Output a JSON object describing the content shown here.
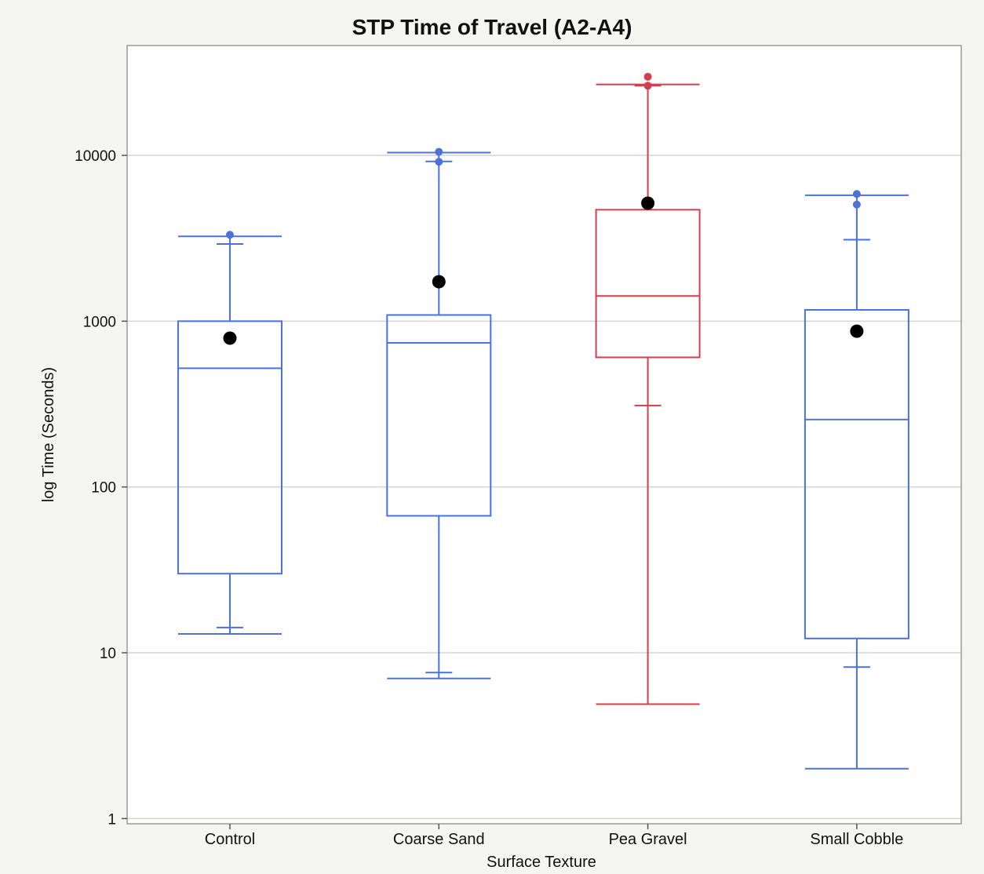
{
  "chart_data": {
    "type": "boxplot",
    "title": "STP Time of Travel (A2-A4)",
    "xlabel": "Surface Texture",
    "ylabel": "log Time (Seconds)",
    "yscale": "log",
    "ylim": [
      0.93,
      46000
    ],
    "yticks": [
      1,
      10,
      100,
      1000,
      10000
    ],
    "ytick_labels": [
      "1",
      "10",
      "100",
      "1000",
      "10000"
    ],
    "grid": "horizontal",
    "legend": "none",
    "colors": {
      "default": "#4a72d9",
      "highlight": "#d1404f",
      "mean_marker": "#000000",
      "gridline": "#d4d4d4",
      "frame": "#9a9a9a",
      "plot_background": "#ffffff",
      "page_background": "#f5f5f2"
    },
    "categories": [
      "Control",
      "Coarse Sand",
      "Pea Gravel",
      "Small Cobble"
    ],
    "boxes": [
      {
        "category": "Control",
        "color": "#4a72d9",
        "whisker_low": 13,
        "q1": 30,
        "median": 520,
        "q3": 1000,
        "whisker_high": 3250,
        "cap_low": 13,
        "cap_high": 3250,
        "ticks": [
          14.2,
          2920
        ],
        "mean": 790,
        "outliers": [
          3320
        ]
      },
      {
        "category": "Coarse Sand",
        "color": "#4a72d9",
        "whisker_low": 7,
        "q1": 67,
        "median": 740,
        "q3": 1090,
        "whisker_high": 10400,
        "cap_low": 7,
        "cap_high": 10400,
        "ticks": [
          7.6,
          9200
        ],
        "mean": 1730,
        "outliers": [
          9150,
          10500
        ]
      },
      {
        "category": "Pea Gravel",
        "color": "#d1404f",
        "whisker_low": 4.9,
        "q1": 605,
        "median": 1420,
        "q3": 4700,
        "whisker_high": 26800,
        "cap_low": 4.9,
        "cap_high": 26800,
        "ticks": [
          310,
          26300
        ],
        "mean": 5150,
        "outliers": [
          26300,
          29800
        ]
      },
      {
        "category": "Small Cobble",
        "color": "#4a72d9",
        "whisker_low": 2,
        "q1": 12.2,
        "median": 255,
        "q3": 1170,
        "whisker_high": 5750,
        "cap_low": 2,
        "cap_high": 5750,
        "ticks": [
          8.2,
          3100
        ],
        "mean": 870,
        "outliers": [
          5050,
          5850
        ]
      }
    ]
  }
}
